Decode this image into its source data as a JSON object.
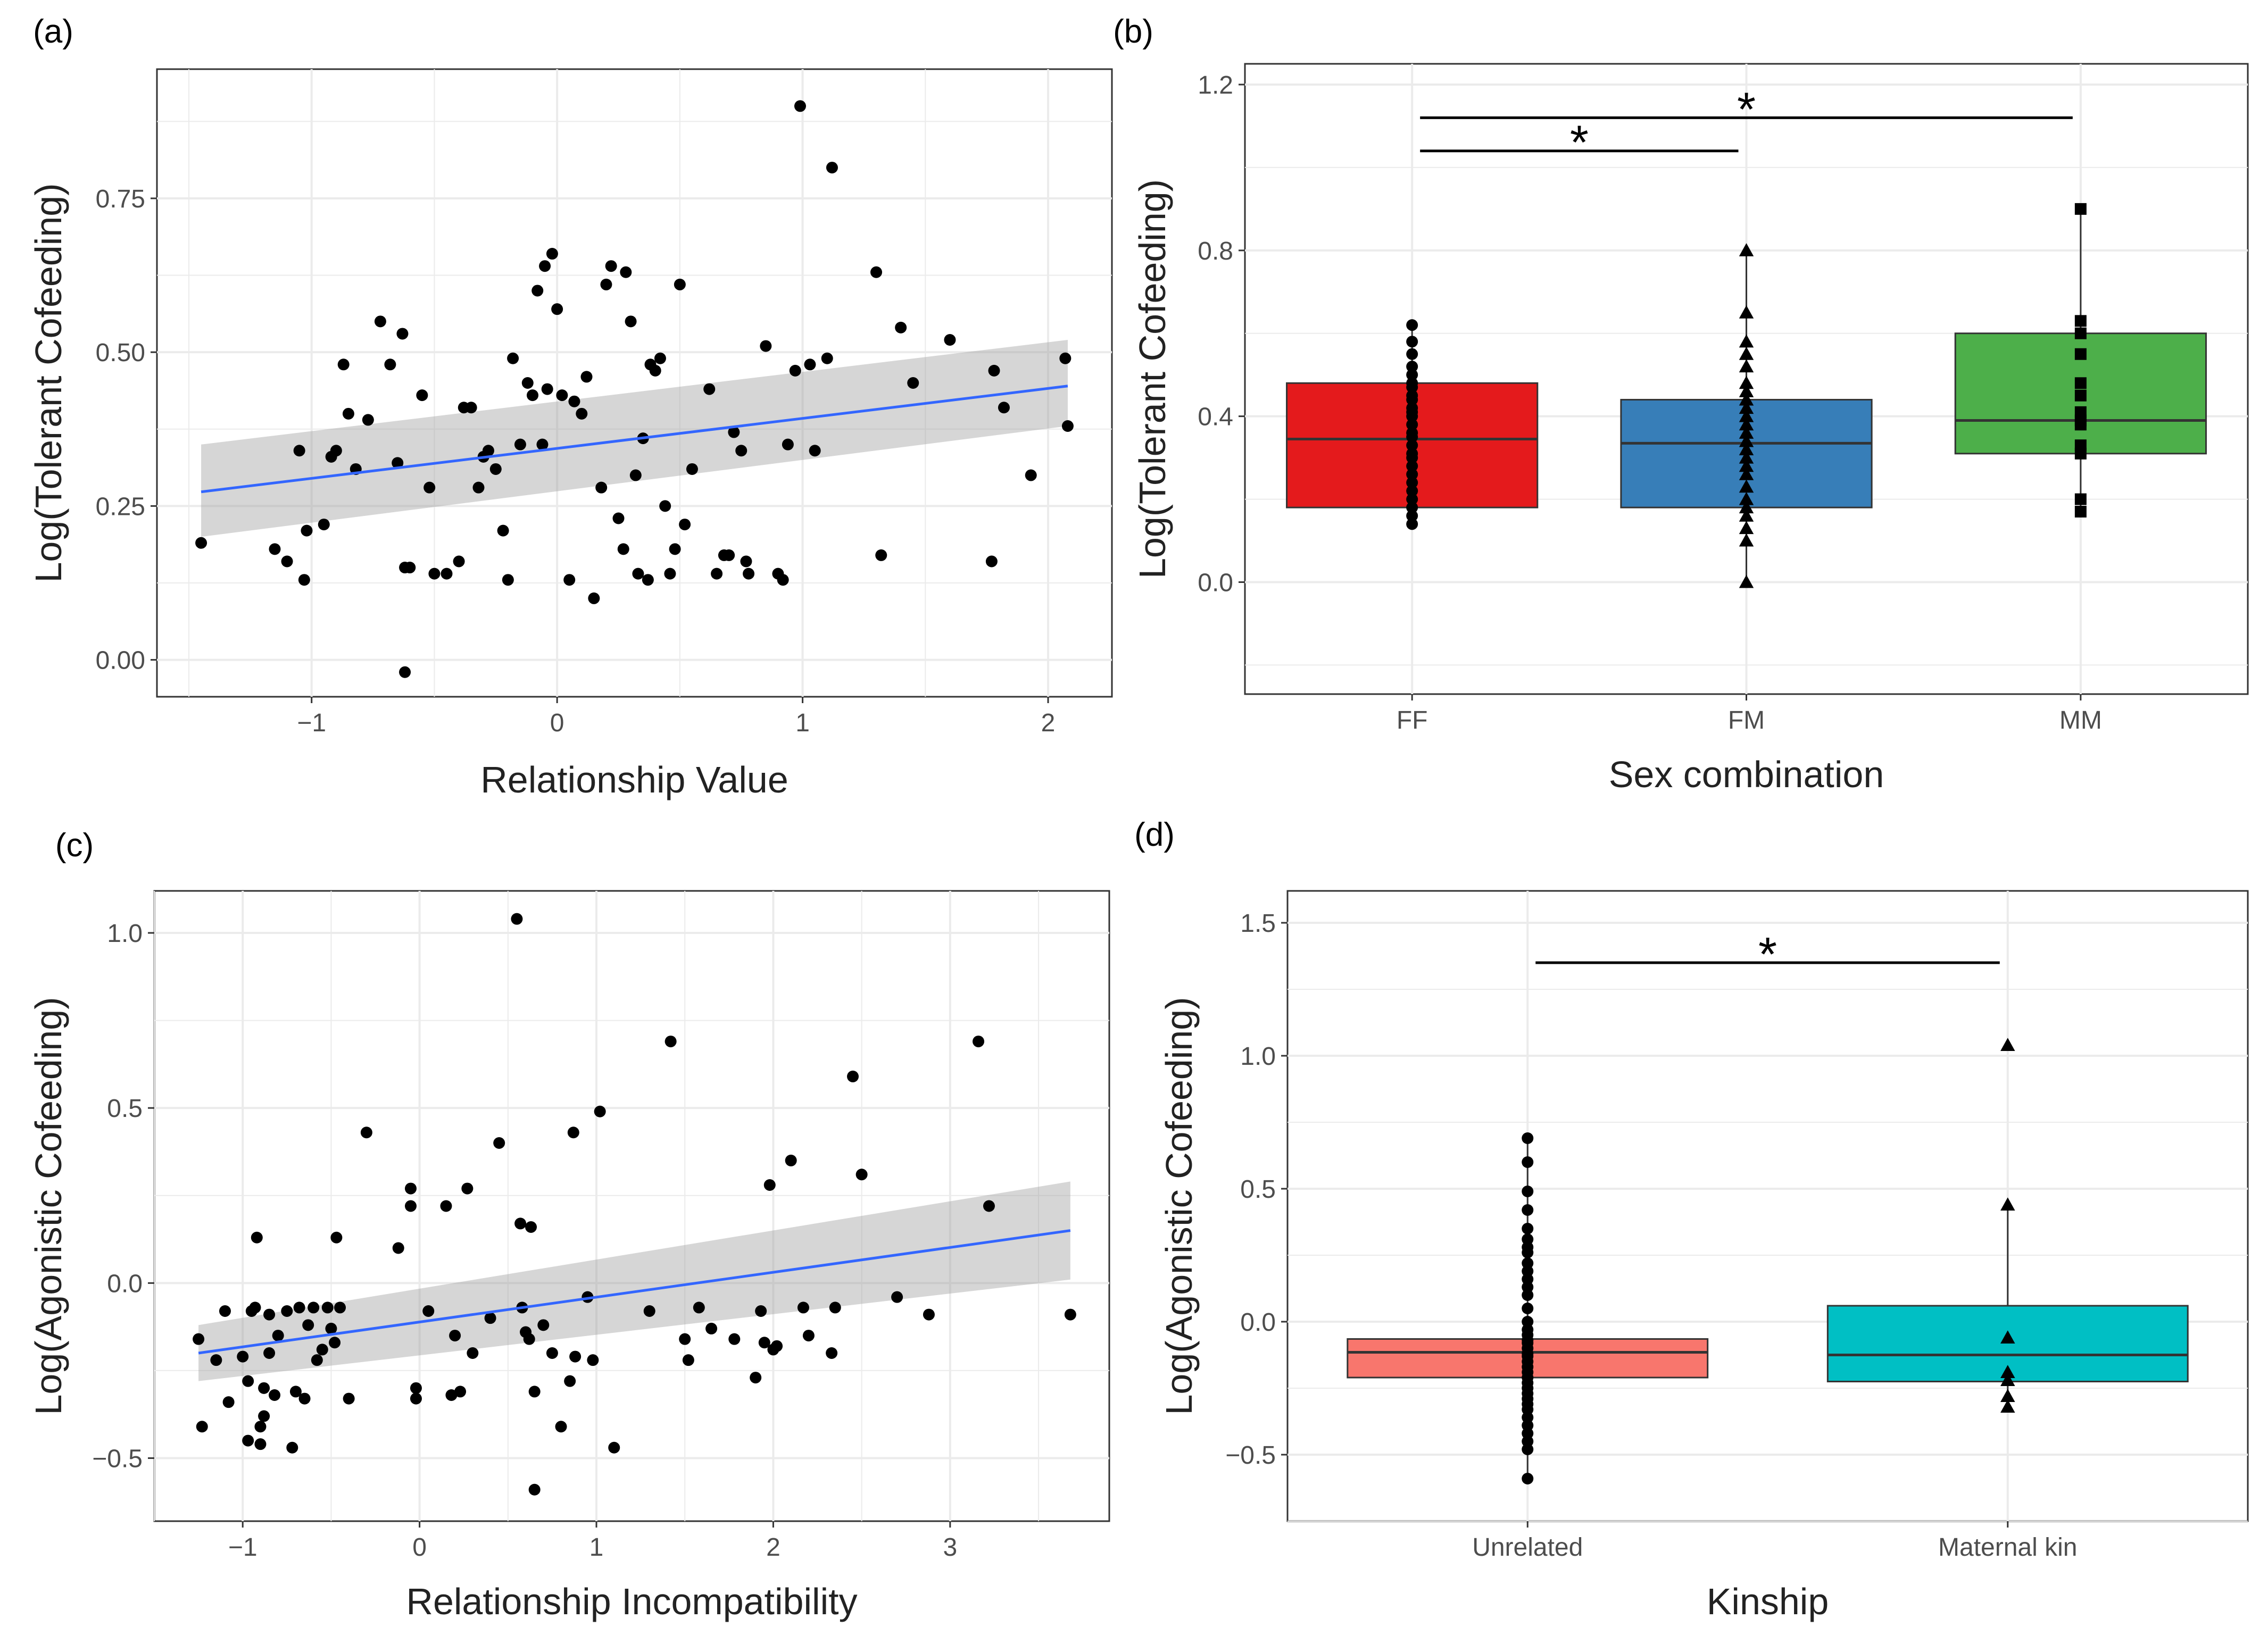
{
  "chart_data": [
    {
      "panel_label": "(a)",
      "type": "scatter",
      "xlabel": "Relationship Value",
      "ylabel": "Log(Tolerant Cofeeding)",
      "xlim": [
        -1.63,
        2.26
      ],
      "ylim": [
        -0.06,
        0.96
      ],
      "xticks": [
        -1,
        0,
        1,
        2
      ],
      "xtick_labels": [
        "−1",
        "0",
        "1",
        "2"
      ],
      "yticks": [
        0.0,
        0.25,
        0.5,
        0.75
      ],
      "ytick_labels": [
        "0.00",
        "0.25",
        "0.50",
        "0.75"
      ],
      "grid": true,
      "trend": {
        "x": [
          -1.45,
          2.08
        ],
        "y": [
          0.273,
          0.445
        ]
      },
      "ci_band": {
        "x": [
          -1.45,
          2.08
        ],
        "lower": [
          0.2,
          0.38
        ],
        "upper": [
          0.35,
          0.52
        ]
      },
      "points": [
        [
          -1.45,
          0.19
        ],
        [
          -1.15,
          0.18
        ],
        [
          -1.1,
          0.16
        ],
        [
          -1.05,
          0.34
        ],
        [
          -1.03,
          0.13
        ],
        [
          -1.02,
          0.21
        ],
        [
          -0.95,
          0.22
        ],
        [
          -0.92,
          0.33
        ],
        [
          -0.9,
          0.34
        ],
        [
          -0.87,
          0.48
        ],
        [
          -0.85,
          0.4
        ],
        [
          -0.82,
          0.31
        ],
        [
          -0.77,
          0.39
        ],
        [
          -0.72,
          0.55
        ],
        [
          -0.68,
          0.48
        ],
        [
          -0.65,
          0.32
        ],
        [
          -0.63,
          0.53
        ],
        [
          -0.62,
          0.15
        ],
        [
          -0.6,
          0.15
        ],
        [
          -0.62,
          -0.02
        ],
        [
          -0.55,
          0.43
        ],
        [
          -0.52,
          0.28
        ],
        [
          -0.5,
          0.14
        ],
        [
          -0.45,
          0.14
        ],
        [
          -0.4,
          0.16
        ],
        [
          -0.38,
          0.41
        ],
        [
          -0.35,
          0.41
        ],
        [
          -0.32,
          0.28
        ],
        [
          -0.3,
          0.33
        ],
        [
          -0.28,
          0.34
        ],
        [
          -0.25,
          0.31
        ],
        [
          -0.22,
          0.21
        ],
        [
          -0.2,
          0.13
        ],
        [
          -0.18,
          0.49
        ],
        [
          -0.15,
          0.35
        ],
        [
          -0.12,
          0.45
        ],
        [
          -0.1,
          0.43
        ],
        [
          -0.08,
          0.6
        ],
        [
          -0.06,
          0.35
        ],
        [
          -0.05,
          0.64
        ],
        [
          -0.04,
          0.44
        ],
        [
          -0.02,
          0.66
        ],
        [
          0.0,
          0.57
        ],
        [
          0.02,
          0.43
        ],
        [
          0.05,
          0.13
        ],
        [
          0.07,
          0.42
        ],
        [
          0.1,
          0.4
        ],
        [
          0.12,
          0.46
        ],
        [
          0.15,
          0.1
        ],
        [
          0.18,
          0.28
        ],
        [
          0.2,
          0.61
        ],
        [
          0.22,
          0.64
        ],
        [
          0.25,
          0.23
        ],
        [
          0.27,
          0.18
        ],
        [
          0.28,
          0.63
        ],
        [
          0.3,
          0.55
        ],
        [
          0.32,
          0.3
        ],
        [
          0.33,
          0.14
        ],
        [
          0.35,
          0.36
        ],
        [
          0.37,
          0.13
        ],
        [
          0.38,
          0.48
        ],
        [
          0.4,
          0.47
        ],
        [
          0.42,
          0.49
        ],
        [
          0.44,
          0.25
        ],
        [
          0.46,
          0.14
        ],
        [
          0.48,
          0.18
        ],
        [
          0.5,
          0.61
        ],
        [
          0.52,
          0.22
        ],
        [
          0.55,
          0.31
        ],
        [
          0.62,
          0.44
        ],
        [
          0.65,
          0.14
        ],
        [
          0.68,
          0.17
        ],
        [
          0.7,
          0.17
        ],
        [
          0.72,
          0.37
        ],
        [
          0.75,
          0.34
        ],
        [
          0.77,
          0.16
        ],
        [
          0.78,
          0.14
        ],
        [
          0.85,
          0.51
        ],
        [
          0.9,
          0.14
        ],
        [
          0.92,
          0.13
        ],
        [
          0.94,
          0.35
        ],
        [
          0.97,
          0.47
        ],
        [
          0.99,
          0.9
        ],
        [
          1.03,
          0.48
        ],
        [
          1.05,
          0.34
        ],
        [
          1.1,
          0.49
        ],
        [
          1.12,
          0.8
        ],
        [
          1.3,
          0.63
        ],
        [
          1.32,
          0.17
        ],
        [
          1.4,
          0.54
        ],
        [
          1.45,
          0.45
        ],
        [
          1.6,
          0.52
        ],
        [
          1.77,
          0.16
        ],
        [
          1.78,
          0.47
        ],
        [
          1.82,
          0.41
        ],
        [
          1.93,
          0.3
        ],
        [
          2.07,
          0.49
        ],
        [
          2.08,
          0.38
        ]
      ]
    },
    {
      "panel_label": "(b)",
      "type": "box",
      "xlabel": "Sex combination",
      "ylabel": "Log(Tolerant Cofeeding)",
      "ylim": [
        -0.27,
        1.25
      ],
      "yticks": [
        0.0,
        0.4,
        0.8,
        1.2
      ],
      "ytick_labels": [
        "0.0",
        "0.4",
        "0.8",
        "1.2"
      ],
      "grid": true,
      "categories": [
        "FF",
        "FM",
        "MM"
      ],
      "boxes": [
        {
          "name": "FF",
          "color": "#E41A1C",
          "marker": "circle",
          "q1": 0.18,
          "median": 0.345,
          "q3": 0.48,
          "whisker_low": 0.13,
          "whisker_high": 0.62,
          "points": [
            0.14,
            0.16,
            0.18,
            0.2,
            0.22,
            0.24,
            0.26,
            0.28,
            0.3,
            0.31,
            0.33,
            0.35,
            0.36,
            0.38,
            0.4,
            0.41,
            0.42,
            0.44,
            0.45,
            0.47,
            0.48,
            0.5,
            0.52,
            0.55,
            0.58,
            0.62
          ]
        },
        {
          "name": "FM",
          "color": "#377EB8",
          "marker": "triangle",
          "q1": 0.18,
          "median": 0.335,
          "q3": 0.44,
          "whisker_low": 0.0,
          "whisker_high": 0.8,
          "points": [
            0.0,
            0.1,
            0.13,
            0.16,
            0.18,
            0.2,
            0.23,
            0.26,
            0.28,
            0.3,
            0.32,
            0.34,
            0.36,
            0.38,
            0.4,
            0.42,
            0.44,
            0.46,
            0.48,
            0.52,
            0.55,
            0.58,
            0.65,
            0.8
          ]
        },
        {
          "name": "MM",
          "color": "#4DAF4A",
          "marker": "square",
          "q1": 0.31,
          "median": 0.39,
          "q3": 0.6,
          "whisker_low": 0.17,
          "whisker_high": 0.9,
          "points": [
            0.17,
            0.2,
            0.31,
            0.33,
            0.38,
            0.39,
            0.41,
            0.45,
            0.48,
            0.55,
            0.6,
            0.63,
            0.9
          ]
        }
      ],
      "significance": [
        {
          "from": "FF",
          "to": "FM",
          "y": 1.04,
          "label": "*"
        },
        {
          "from": "FF",
          "to": "MM",
          "y": 1.12,
          "label": "*"
        }
      ]
    },
    {
      "panel_label": "(c)",
      "type": "scatter",
      "xlabel": "Relationship Incompatibility",
      "ylabel": "Log(Agonistic Cofeeding)",
      "xlim": [
        -1.5,
        3.9
      ],
      "ylim": [
        -0.68,
        1.12
      ],
      "xticks": [
        -1,
        0,
        1,
        2,
        3
      ],
      "xtick_labels": [
        "−1",
        "0",
        "1",
        "2",
        "3"
      ],
      "yticks": [
        -0.5,
        0.0,
        0.5,
        1.0
      ],
      "ytick_labels": [
        "−0.5",
        "0.0",
        "0.5",
        "1.0"
      ],
      "grid": true,
      "trend": {
        "x": [
          -1.25,
          3.68
        ],
        "y": [
          -0.2,
          0.15
        ]
      },
      "ci_band": {
        "x": [
          -1.25,
          3.68
        ],
        "lower": [
          -0.28,
          0.01
        ],
        "upper": [
          -0.12,
          0.29
        ]
      },
      "points": [
        [
          -1.25,
          -0.16
        ],
        [
          -1.23,
          -0.41
        ],
        [
          -1.15,
          -0.22
        ],
        [
          -1.1,
          -0.08
        ],
        [
          -1.08,
          -0.34
        ],
        [
          -1.0,
          -0.21
        ],
        [
          -0.97,
          -0.28
        ],
        [
          -0.97,
          -0.45
        ],
        [
          -0.95,
          -0.08
        ],
        [
          -0.93,
          -0.07
        ],
        [
          -0.92,
          0.13
        ],
        [
          -0.9,
          -0.41
        ],
        [
          -0.9,
          -0.46
        ],
        [
          -0.88,
          -0.38
        ],
        [
          -0.88,
          -0.3
        ],
        [
          -0.85,
          -0.2
        ],
        [
          -0.85,
          -0.09
        ],
        [
          -0.82,
          -0.32
        ],
        [
          -0.8,
          -0.15
        ],
        [
          -0.75,
          -0.08
        ],
        [
          -0.72,
          -0.47
        ],
        [
          -0.7,
          -0.31
        ],
        [
          -0.68,
          -0.07
        ],
        [
          -0.65,
          -0.33
        ],
        [
          -0.63,
          -0.12
        ],
        [
          -0.6,
          -0.07
        ],
        [
          -0.58,
          -0.22
        ],
        [
          -0.55,
          -0.19
        ],
        [
          -0.52,
          -0.07
        ],
        [
          -0.5,
          -0.13
        ],
        [
          -0.48,
          -0.17
        ],
        [
          -0.47,
          0.13
        ],
        [
          -0.45,
          -0.07
        ],
        [
          -0.4,
          -0.33
        ],
        [
          -0.3,
          0.43
        ],
        [
          -0.12,
          0.1
        ],
        [
          -0.05,
          0.27
        ],
        [
          -0.05,
          0.22
        ],
        [
          -0.02,
          -0.3
        ],
        [
          -0.02,
          -0.33
        ],
        [
          0.05,
          -0.08
        ],
        [
          0.15,
          0.22
        ],
        [
          0.18,
          -0.32
        ],
        [
          0.2,
          -0.15
        ],
        [
          0.23,
          -0.31
        ],
        [
          0.27,
          0.27
        ],
        [
          0.3,
          -0.2
        ],
        [
          0.4,
          -0.1
        ],
        [
          0.45,
          0.4
        ],
        [
          0.55,
          1.04
        ],
        [
          0.57,
          0.17
        ],
        [
          0.58,
          -0.07
        ],
        [
          0.6,
          -0.14
        ],
        [
          0.62,
          -0.16
        ],
        [
          0.63,
          0.16
        ],
        [
          0.65,
          -0.31
        ],
        [
          0.65,
          -0.59
        ],
        [
          0.7,
          -0.12
        ],
        [
          0.75,
          -0.2
        ],
        [
          0.8,
          -0.41
        ],
        [
          0.85,
          -0.28
        ],
        [
          0.87,
          0.43
        ],
        [
          0.88,
          -0.21
        ],
        [
          0.95,
          -0.04
        ],
        [
          0.98,
          -0.22
        ],
        [
          1.02,
          0.49
        ],
        [
          1.1,
          -0.47
        ],
        [
          1.3,
          -0.08
        ],
        [
          1.42,
          0.69
        ],
        [
          1.5,
          -0.16
        ],
        [
          1.52,
          -0.22
        ],
        [
          1.58,
          -0.07
        ],
        [
          1.65,
          -0.13
        ],
        [
          1.78,
          -0.16
        ],
        [
          1.9,
          -0.27
        ],
        [
          1.93,
          -0.08
        ],
        [
          1.95,
          -0.17
        ],
        [
          1.98,
          0.28
        ],
        [
          2.0,
          -0.19
        ],
        [
          2.02,
          -0.18
        ],
        [
          2.1,
          0.35
        ],
        [
          2.17,
          -0.07
        ],
        [
          2.2,
          -0.15
        ],
        [
          2.33,
          -0.2
        ],
        [
          2.35,
          -0.07
        ],
        [
          2.45,
          0.59
        ],
        [
          2.5,
          0.31
        ],
        [
          2.7,
          -0.04
        ],
        [
          2.88,
          -0.09
        ],
        [
          3.16,
          0.69
        ],
        [
          3.22,
          0.22
        ],
        [
          3.68,
          -0.09
        ]
      ]
    },
    {
      "panel_label": "(d)",
      "type": "box",
      "xlabel": "Kinship",
      "ylabel": "Log(Agonistic Cofeeding)",
      "ylim": [
        -0.75,
        1.62
      ],
      "yticks": [
        -0.5,
        0.0,
        0.5,
        1.0,
        1.5
      ],
      "ytick_labels": [
        "−0.5",
        "0.0",
        "0.5",
        "1.0",
        "1.5"
      ],
      "grid": true,
      "categories": [
        "Unrelated",
        "Maternal kin"
      ],
      "boxes": [
        {
          "name": "Unrelated",
          "color": "#F8766D",
          "marker": "circle",
          "q1": -0.21,
          "median": -0.115,
          "q3": -0.065,
          "whisker_low": -0.59,
          "whisker_high": 0.69,
          "points": [
            -0.59,
            -0.48,
            -0.45,
            -0.42,
            -0.39,
            -0.36,
            -0.33,
            -0.31,
            -0.29,
            -0.27,
            -0.25,
            -0.23,
            -0.21,
            -0.19,
            -0.17,
            -0.15,
            -0.13,
            -0.12,
            -0.1,
            -0.08,
            -0.07,
            -0.05,
            -0.03,
            0.0,
            0.05,
            0.1,
            0.13,
            0.16,
            0.19,
            0.22,
            0.26,
            0.28,
            0.31,
            0.35,
            0.42,
            0.49,
            0.6,
            0.69
          ]
        },
        {
          "name": "Maternal kin",
          "color": "#00BFC4",
          "marker": "triangle",
          "q1": -0.225,
          "median": -0.125,
          "q3": 0.06,
          "whisker_low": -0.32,
          "whisker_high": 0.44,
          "points": [
            -0.32,
            -0.28,
            -0.22,
            -0.19,
            -0.06,
            0.44,
            1.04
          ]
        }
      ],
      "significance": [
        {
          "from": "Unrelated",
          "to": "Maternal kin",
          "y": 1.35,
          "label": "*"
        }
      ]
    }
  ]
}
